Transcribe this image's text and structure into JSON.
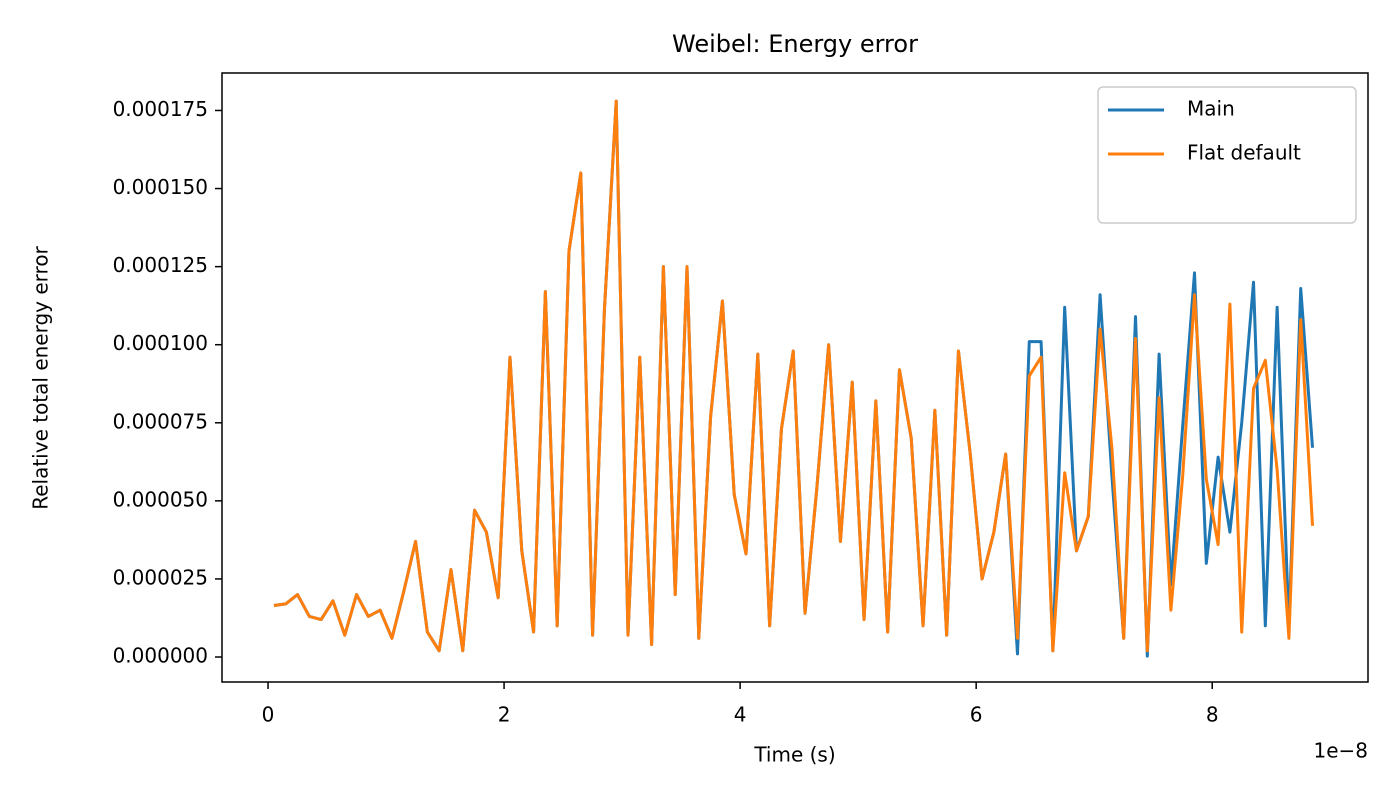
{
  "chart_data": {
    "type": "line",
    "title": "Weibel: Energy error",
    "x_label": "Time (s)",
    "y_label": "Relative total energy error",
    "x_offset_text": "1e−8",
    "x": [
      0.05,
      0.15,
      0.25,
      0.35,
      0.45,
      0.55,
      0.65,
      0.75,
      0.85,
      0.95,
      1.05,
      1.15,
      1.25,
      1.35,
      1.45,
      1.55,
      1.65,
      1.75,
      1.85,
      1.95,
      2.05,
      2.15,
      2.25,
      2.35,
      2.45,
      2.55,
      2.65,
      2.75,
      2.85,
      2.95,
      3.05,
      3.15,
      3.25,
      3.35,
      3.45,
      3.55,
      3.65,
      3.75,
      3.85,
      3.95,
      4.05,
      4.15,
      4.25,
      4.35,
      4.45,
      4.55,
      4.65,
      4.75,
      4.85,
      4.95,
      5.05,
      5.15,
      5.25,
      5.35,
      5.45,
      5.55,
      5.65,
      5.75,
      5.85,
      5.95,
      6.05,
      6.15,
      6.25,
      6.35,
      6.45,
      6.55,
      6.65,
      6.75,
      6.85,
      6.95,
      7.05,
      7.15,
      7.25,
      7.35,
      7.45,
      7.55,
      7.65,
      7.75,
      7.85,
      7.95,
      8.05,
      8.15,
      8.25,
      8.35,
      8.45,
      8.55,
      8.65,
      8.75,
      8.85
    ],
    "series": [
      {
        "name": "Main",
        "color": "#1f77b4",
        "values": [
          1.65e-05,
          1.7e-05,
          2e-05,
          1.3e-05,
          1.2e-05,
          1.8e-05,
          7e-06,
          2e-05,
          1.3e-05,
          1.5e-05,
          6e-06,
          2.1e-05,
          3.7e-05,
          8e-06,
          2e-06,
          2.8e-05,
          2e-06,
          4.7e-05,
          4e-05,
          1.9e-05,
          9.6e-05,
          3.4e-05,
          8e-06,
          0.000117,
          1e-05,
          0.00013,
          0.000155,
          7e-06,
          0.000111,
          0.000178,
          7e-06,
          9.6e-05,
          4e-06,
          0.000125,
          2e-05,
          0.000125,
          6e-06,
          7.7e-05,
          0.000114,
          5.2e-05,
          3.3e-05,
          9.7e-05,
          1e-05,
          7.3e-05,
          9.8e-05,
          1.4e-05,
          5.4e-05,
          0.0001,
          3.7e-05,
          8.8e-05,
          1.2e-05,
          8.2e-05,
          8e-06,
          9.2e-05,
          7e-05,
          1e-05,
          7.9e-05,
          7e-06,
          9.8e-05,
          6.5e-05,
          2.5e-05,
          4e-05,
          6.5e-05,
          1e-06,
          0.000101,
          0.000101,
          2e-06,
          0.000112,
          3.4e-05,
          4.5e-05,
          0.000116,
          5.8e-05,
          6e-06,
          0.000109,
          3e-07,
          9.7e-05,
          2.3e-05,
          7.4e-05,
          0.000123,
          3e-05,
          6.4e-05,
          4e-05,
          7.5e-05,
          0.00012,
          1e-05,
          0.000112,
          1e-05,
          0.000118,
          6.7e-05
        ]
      },
      {
        "name": "Flat default",
        "color": "#ff7f0e",
        "values": [
          1.65e-05,
          1.7e-05,
          2e-05,
          1.3e-05,
          1.2e-05,
          1.8e-05,
          7e-06,
          2e-05,
          1.3e-05,
          1.5e-05,
          6e-06,
          2.1e-05,
          3.7e-05,
          8e-06,
          2e-06,
          2.8e-05,
          2e-06,
          4.7e-05,
          4e-05,
          1.9e-05,
          9.6e-05,
          3.4e-05,
          8e-06,
          0.000117,
          1e-05,
          0.00013,
          0.000155,
          7e-06,
          0.000111,
          0.000178,
          7e-06,
          9.6e-05,
          4e-06,
          0.000125,
          2e-05,
          0.000125,
          6e-06,
          7.7e-05,
          0.000114,
          5.2e-05,
          3.3e-05,
          9.7e-05,
          1e-05,
          7.3e-05,
          9.8e-05,
          1.4e-05,
          5.4e-05,
          0.0001,
          3.7e-05,
          8.8e-05,
          1.2e-05,
          8.2e-05,
          8e-06,
          9.2e-05,
          7e-05,
          1e-05,
          7.9e-05,
          7e-06,
          9.8e-05,
          6.5e-05,
          2.5e-05,
          4e-05,
          6.5e-05,
          6e-06,
          9e-05,
          9.6e-05,
          2e-06,
          5.9e-05,
          3.4e-05,
          4.5e-05,
          0.000105,
          6.7e-05,
          6e-06,
          0.000102,
          2e-06,
          8.3e-05,
          1.5e-05,
          5.8e-05,
          0.000116,
          5.7e-05,
          3.6e-05,
          0.000113,
          8e-06,
          8.6e-05,
          9.5e-05,
          6e-05,
          6e-06,
          0.000108,
          4.2e-05
        ]
      }
    ],
    "xlim": [
      -0.39,
      9.32
    ],
    "xticks": [
      0,
      2,
      4,
      6,
      8
    ],
    "ylim": [
      -8e-06,
      0.000187
    ],
    "yticks": [
      {
        "value": 0,
        "label": "0.000000"
      },
      {
        "value": 2.5e-05,
        "label": "0.000025"
      },
      {
        "value": 5e-05,
        "label": "0.000050"
      },
      {
        "value": 7.5e-05,
        "label": "0.000075"
      },
      {
        "value": 0.0001,
        "label": "0.000100"
      },
      {
        "value": 0.000125,
        "label": "0.000125"
      },
      {
        "value": 0.00015,
        "label": "0.000150"
      },
      {
        "value": 0.000175,
        "label": "0.000175"
      }
    ],
    "legend": "upper right",
    "grid": false
  }
}
